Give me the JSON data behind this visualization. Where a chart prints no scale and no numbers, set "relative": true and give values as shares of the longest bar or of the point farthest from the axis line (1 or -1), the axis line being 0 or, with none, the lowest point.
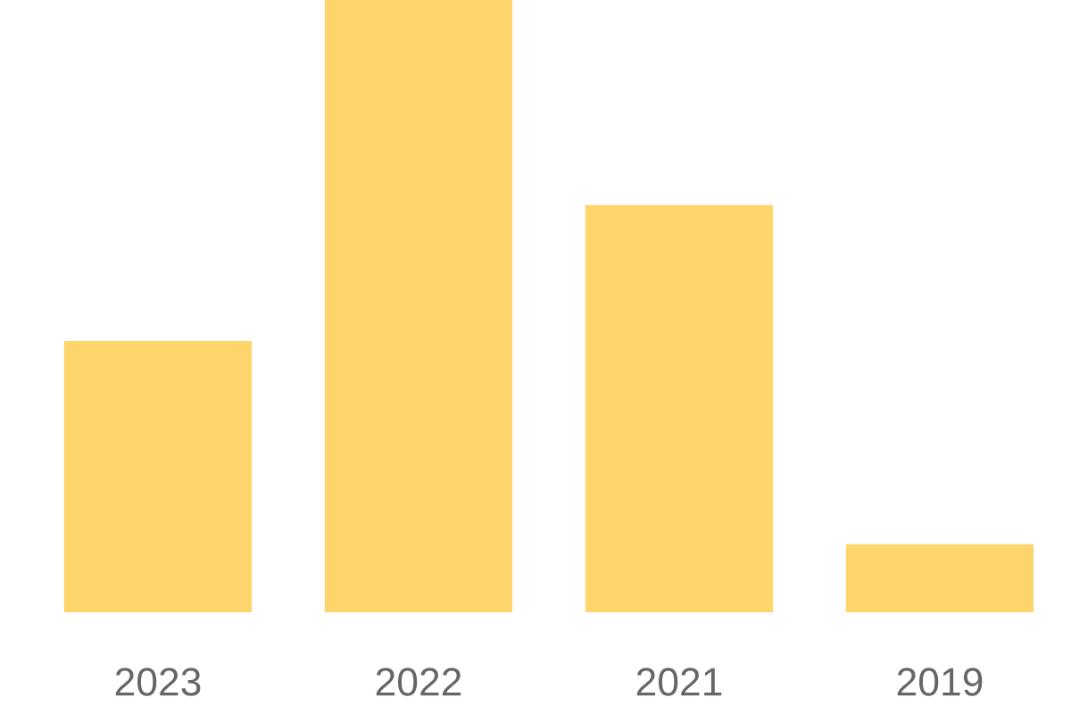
{
  "chart_data": {
    "type": "bar",
    "relative": true,
    "categories": [
      "2023",
      "2022",
      "2021",
      "2019"
    ],
    "values": [
      0.443,
      1,
      0.665,
      0.111
    ],
    "color": "#fed56b",
    "grid": false,
    "legend": false
  }
}
